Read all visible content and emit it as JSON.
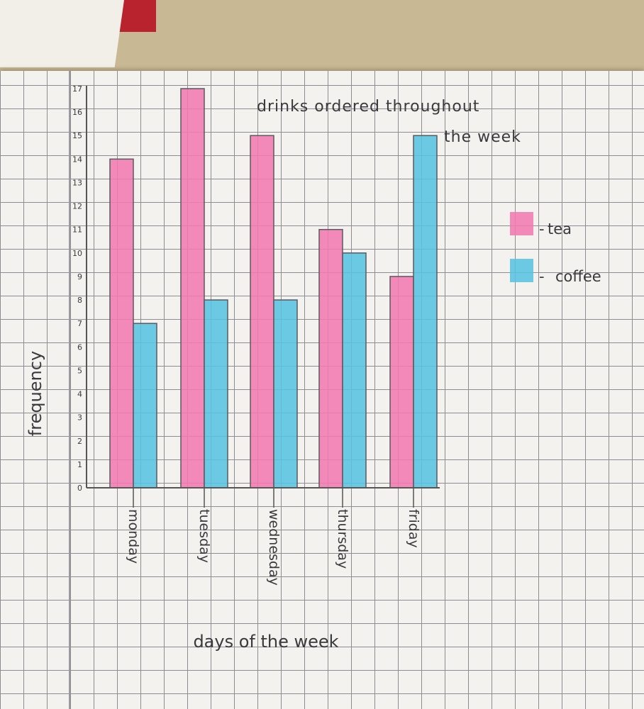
{
  "chart_data": {
    "type": "bar",
    "title_line1": "drinks ordered throughout",
    "title_line2": "the week",
    "xlabel": "days of the week",
    "ylabel": "frequency",
    "categories": [
      "monday",
      "tuesday",
      "wednesday",
      "thursday",
      "friday"
    ],
    "series": [
      {
        "name": "tea",
        "values": [
          14,
          17,
          15,
          11,
          9
        ],
        "color": "#f27ab2"
      },
      {
        "name": "coffee",
        "values": [
          7,
          8,
          8,
          10,
          15
        ],
        "color": "#58c3e2"
      }
    ],
    "ylim": [
      0,
      17
    ],
    "yticks": [
      "0",
      "1",
      "2",
      "3",
      "4",
      "5",
      "6",
      "7",
      "8",
      "9",
      "10",
      "11",
      "12",
      "13",
      "14",
      "15",
      "16",
      "17"
    ],
    "legend": [
      {
        "dash": "-",
        "label": "tea"
      },
      {
        "dash": "-",
        "label": "coffee"
      }
    ],
    "legend_position": "right",
    "grid": true
  }
}
